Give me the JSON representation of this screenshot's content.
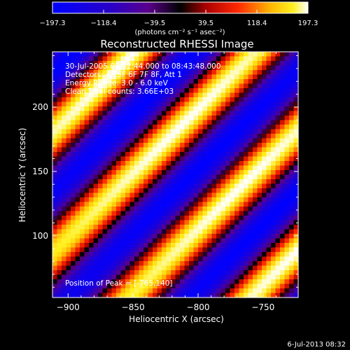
{
  "chart_data": {
    "type": "heatmap",
    "title": "Reconstructed RHESSI Image",
    "xlabel": "Heliocentric X (arcsec)",
    "ylabel": "Heliocentric Y (arcsec)",
    "xlim": [
      -912,
      -723
    ],
    "ylim": [
      52,
      243
    ],
    "x_ticks": [
      -900,
      -850,
      -800,
      -750
    ],
    "x_tick_labels": [
      "−900",
      "−850",
      "−800",
      "−750"
    ],
    "y_ticks": [
      100,
      150,
      200
    ],
    "y_tick_labels": [
      "100",
      "150",
      "200"
    ],
    "colorbar": {
      "range": [
        -197.3,
        197.3
      ],
      "ticks": [
        -197.3,
        -118.4,
        -39.5,
        39.5,
        118.4,
        197.3
      ],
      "tick_labels": [
        "−197.3",
        "−118.4",
        "−39.5",
        "39.5",
        "118.4",
        "197.3"
      ],
      "unit_label": "(photons cm⁻² s⁻¹ asec⁻²)",
      "colormap": "hot-cold (blue-purple-black-red-yellow-white)"
    },
    "annotations": {
      "time": "30-Jul-2005 08:42:44.000 to 08:43:48.000",
      "detectors": "Detectors: 4F 5F 6F 7F 8F, Att 1",
      "energy": "Energy Range: 3.0 - 6.0 keV",
      "clean": "Clean     Total counts: 3.66E+03",
      "peak": "Position of Peak = [-765,140]"
    },
    "peak": {
      "x": -765,
      "y": 140,
      "value": 197.3
    },
    "pattern": "diagonal fringe stripes running from lower-left to upper-right",
    "grid": false
  },
  "footer": {
    "date": "6-Jul-2013 08:32"
  },
  "colors": {
    "background": "#000000",
    "text": "#ffffff"
  }
}
